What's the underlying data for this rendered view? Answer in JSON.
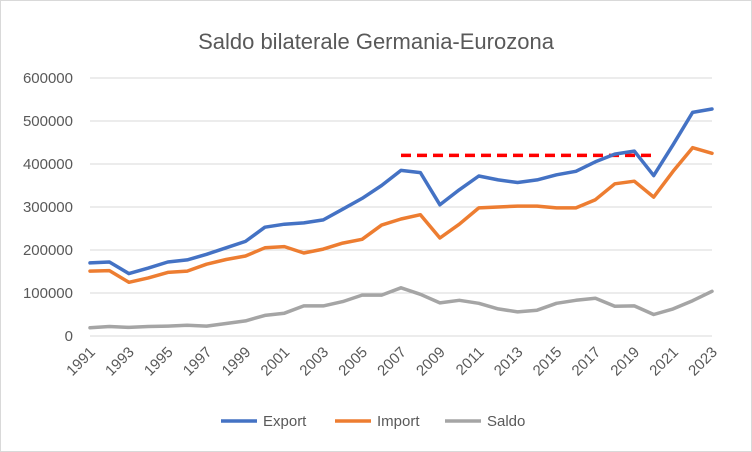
{
  "chart_data": {
    "type": "line",
    "title": "Saldo bilaterale Germania-Eurozona",
    "xlabel": "",
    "ylabel": "",
    "x": [
      1991,
      1992,
      1993,
      1994,
      1995,
      1996,
      1997,
      1998,
      1999,
      2000,
      2001,
      2002,
      2003,
      2004,
      2005,
      2006,
      2007,
      2008,
      2009,
      2010,
      2011,
      2012,
      2013,
      2014,
      2015,
      2016,
      2017,
      2018,
      2019,
      2020,
      2021,
      2022,
      2023
    ],
    "x_tick_labels": [
      "1991",
      "1993",
      "1995",
      "1997",
      "1999",
      "2001",
      "2003",
      "2005",
      "2007",
      "2009",
      "2011",
      "2013",
      "2015",
      "2017",
      "2019",
      "2021",
      "2023"
    ],
    "y_tick_labels": [
      "0",
      "100000",
      "200000",
      "300000",
      "400000",
      "500000",
      "600000"
    ],
    "ylim": [
      0,
      600000
    ],
    "grid": true,
    "legend_position": "bottom",
    "series": [
      {
        "name": "Export",
        "color": "#4472c4",
        "values": [
          170000,
          172000,
          145000,
          158000,
          172000,
          177000,
          190000,
          205000,
          220000,
          253000,
          260000,
          263000,
          270000,
          295000,
          320000,
          350000,
          385000,
          380000,
          305000,
          340000,
          372000,
          363000,
          357000,
          363000,
          375000,
          383000,
          405000,
          423000,
          430000,
          373000,
          445000,
          520000,
          528000
        ]
      },
      {
        "name": "Import",
        "color": "#ed7d31",
        "values": [
          151000,
          152000,
          125000,
          135000,
          148000,
          151000,
          167000,
          178000,
          186000,
          205000,
          208000,
          193000,
          202000,
          216000,
          225000,
          258000,
          272000,
          282000,
          228000,
          260000,
          298000,
          300000,
          302000,
          302000,
          298000,
          298000,
          317000,
          354000,
          360000,
          323000,
          383000,
          438000,
          425000
        ]
      },
      {
        "name": "Saldo",
        "color": "#a5a5a5",
        "values": [
          19000,
          22000,
          20000,
          22000,
          23000,
          25000,
          23000,
          29000,
          35000,
          48000,
          53000,
          70000,
          70000,
          80000,
          95000,
          95000,
          112000,
          97000,
          77000,
          83000,
          76000,
          63000,
          56000,
          60000,
          76000,
          83000,
          88000,
          69000,
          70000,
          50000,
          63000,
          82000,
          104000
        ]
      }
    ],
    "annotation_line": {
      "color": "#ff0000",
      "style": "dashed",
      "y": 420000,
      "x_start": 2007,
      "x_end": 2020
    }
  }
}
